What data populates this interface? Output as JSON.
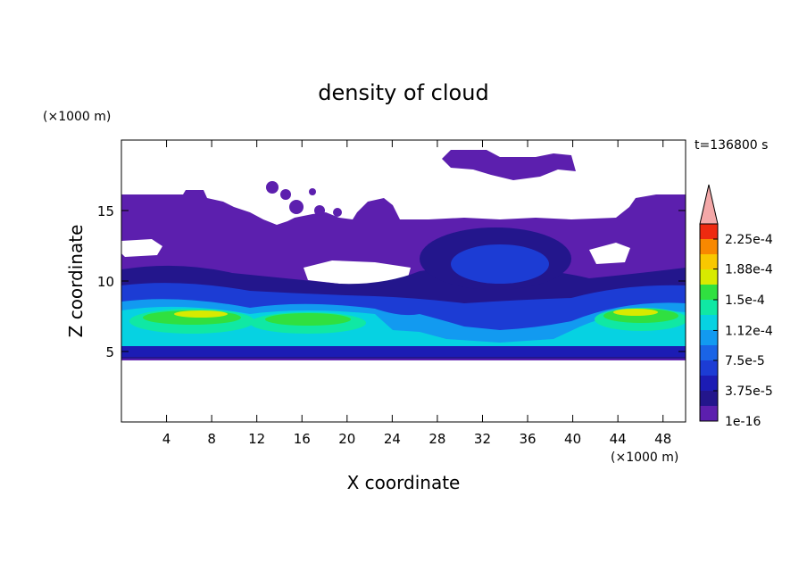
{
  "chart_data": {
    "type": "contour",
    "title": "density of cloud",
    "x_label": "X coordinate",
    "y_label": "Z coordinate",
    "x_unit": "(×1000 m)",
    "y_unit": "(×1000 m)",
    "time_label": "t=136800 s",
    "xlim": [
      0,
      50
    ],
    "xticks": [
      4,
      8,
      12,
      16,
      20,
      24,
      28,
      32,
      36,
      40,
      44,
      48
    ],
    "ylim": [
      0,
      20
    ],
    "yticks": [
      5,
      10,
      15
    ],
    "colorbar": {
      "clim": [
        0,
        0.00024375
      ],
      "ticks": [
        {
          "value": 1e-16,
          "label": "1e-16"
        },
        {
          "value": 3.75e-05,
          "label": "3.75e-5"
        },
        {
          "value": 7.5e-05,
          "label": "7.5e-5"
        },
        {
          "value": 0.000112,
          "label": "1.12e-4"
        },
        {
          "value": 0.00015,
          "label": "1.5e-4"
        },
        {
          "value": 0.000188,
          "label": "1.88e-4"
        },
        {
          "value": 0.000225,
          "label": "2.25e-4"
        }
      ],
      "colors": [
        "#5c1fae",
        "#23168c",
        "#1c1cb4",
        "#1c3cd4",
        "#1a64e6",
        "#129af0",
        "#06d2e2",
        "#10e8a4",
        "#30e040",
        "#d8ea00",
        "#f8c800",
        "#f88800",
        "#ee2a10"
      ],
      "extend_color": "#f4a8a8"
    }
  }
}
